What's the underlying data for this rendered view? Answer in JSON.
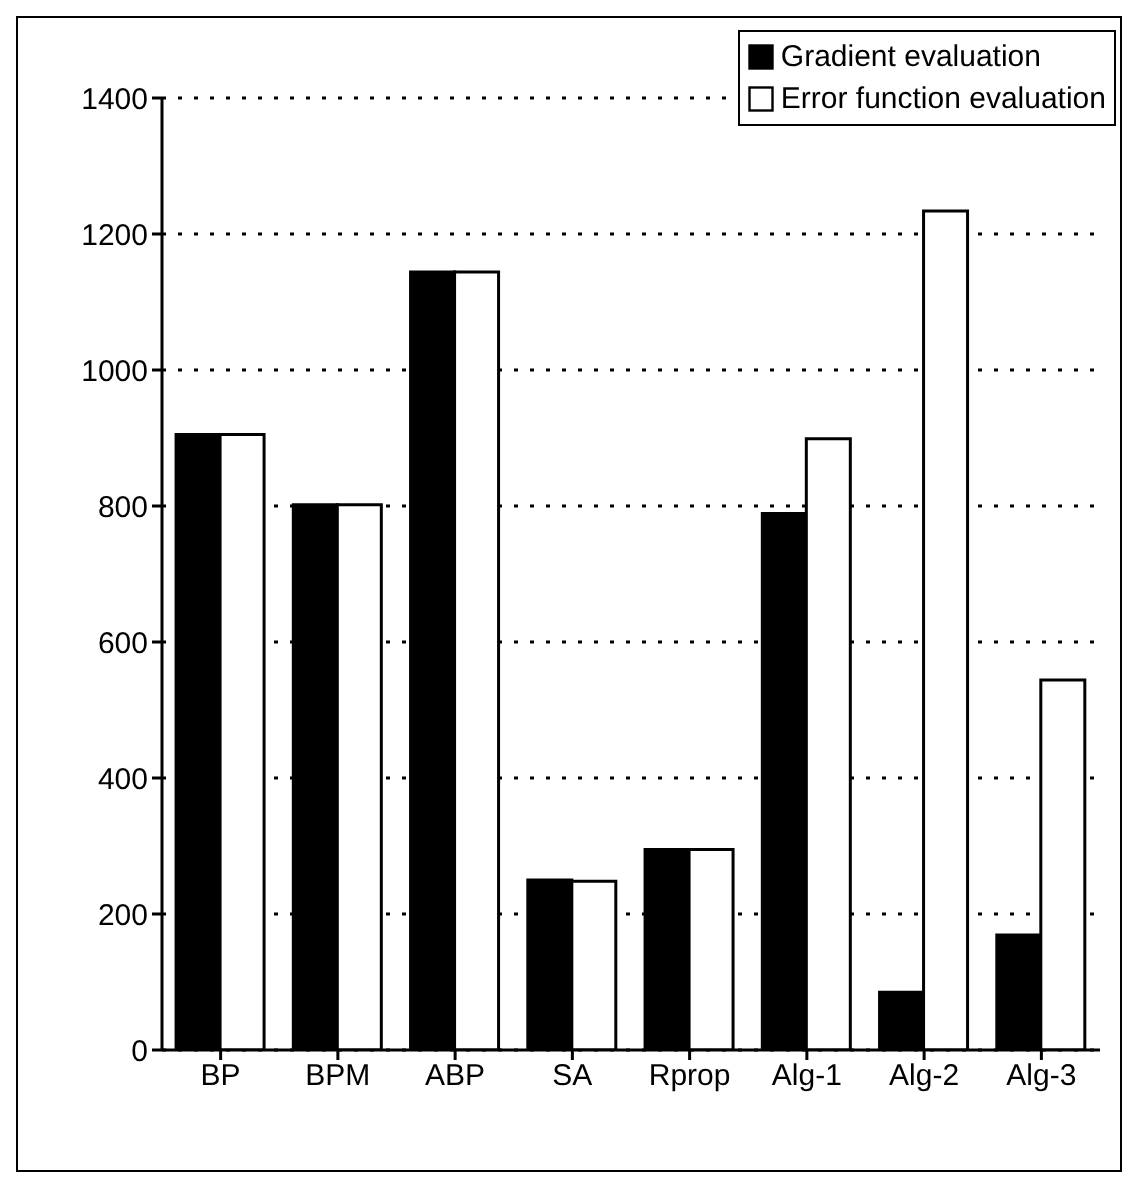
{
  "chart_data": {
    "type": "bar",
    "categories": [
      "BP",
      "BPM",
      "ABP",
      "SA",
      "Rprop",
      "Alg-1",
      "Alg-2",
      "Alg-3"
    ],
    "series": [
      {
        "name": "Gradient evaluation",
        "color": "#000000",
        "values": [
          905,
          802,
          1144,
          250,
          295,
          789,
          85,
          169
        ]
      },
      {
        "name": "Error function evaluation",
        "color": "#ffffff",
        "values": [
          905,
          802,
          1144,
          248,
          295,
          899,
          1234,
          544
        ]
      }
    ],
    "ylim": [
      0,
      1400
    ],
    "yticks": [
      0,
      200,
      400,
      600,
      800,
      1000,
      1200,
      1400
    ],
    "grid": "y",
    "legend": "top right"
  }
}
